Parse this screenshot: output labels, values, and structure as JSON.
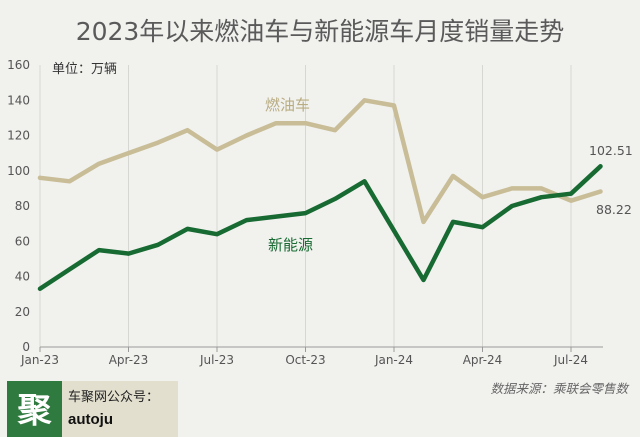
{
  "chart_data": {
    "type": "line",
    "title": "2023年以来燃油车与新能源车月度销量走势",
    "unit_label": "单位：万辆",
    "ylim": [
      0,
      160
    ],
    "yticks": [
      0,
      20,
      40,
      60,
      80,
      100,
      120,
      140,
      160
    ],
    "x": [
      "2023-01",
      "2023-02",
      "2023-03",
      "2023-04",
      "2023-05",
      "2023-06",
      "2023-07",
      "2023-08",
      "2023-09",
      "2023-10",
      "2023-11",
      "2023-12",
      "2024-01",
      "2024-02",
      "2024-03",
      "2024-04",
      "2024-05",
      "2024-06",
      "2024-07",
      "2024-08"
    ],
    "xtick_labels": [
      "Jan-23",
      "Apr-23",
      "Jul-23",
      "Oct-23",
      "Jan-24",
      "Apr-24",
      "Jul-24"
    ],
    "grid": "vertical",
    "series": [
      {
        "name": "燃油车",
        "color": "#c8bd96",
        "values": [
          96,
          94,
          104,
          110,
          116,
          123,
          112,
          120,
          127,
          127,
          123,
          140,
          137,
          71,
          97,
          85,
          90,
          90,
          83,
          88.22
        ]
      },
      {
        "name": "新能源",
        "color": "#176a32",
        "values": [
          33,
          44,
          55,
          53,
          58,
          67,
          64,
          72,
          74,
          76,
          84,
          94,
          66,
          38,
          71,
          68,
          80,
          85,
          87,
          102.51
        ]
      }
    ],
    "end_labels": [
      "102.51",
      "88.22"
    ]
  },
  "footer": {
    "logo_char": "聚",
    "brand_label": "车聚网公众号：",
    "handle": "autoju",
    "source": "数据来源：乘联会零售数"
  }
}
